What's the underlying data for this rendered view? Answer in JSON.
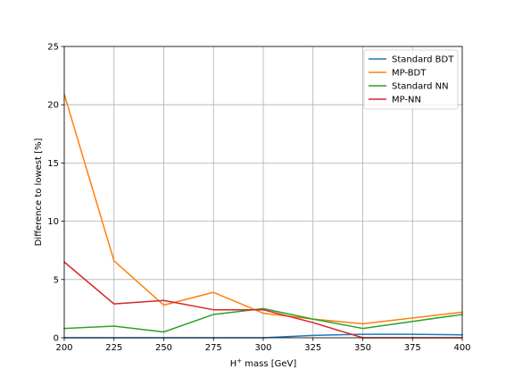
{
  "chart_data": {
    "type": "line",
    "x": [
      200,
      225,
      250,
      275,
      300,
      325,
      350,
      375,
      400
    ],
    "series": [
      {
        "name": "Standard BDT",
        "color": "#1f77b4",
        "values": [
          0.0,
          0.0,
          0.0,
          0.0,
          0.0,
          0.2,
          0.3,
          0.3,
          0.25
        ]
      },
      {
        "name": "MP-BDT",
        "color": "#ff7f0e",
        "values": [
          20.9,
          6.6,
          2.8,
          3.9,
          2.1,
          1.6,
          1.2,
          1.7,
          2.2
        ]
      },
      {
        "name": "Standard NN",
        "color": "#2ca02c",
        "values": [
          0.8,
          1.0,
          0.5,
          2.0,
          2.5,
          1.6,
          0.8,
          1.4,
          2.0
        ]
      },
      {
        "name": "MP-NN",
        "color": "#d62728",
        "values": [
          6.5,
          2.9,
          3.2,
          2.4,
          2.4,
          1.3,
          0.0,
          0.0,
          0.0
        ]
      }
    ],
    "xlabel_main": "H",
    "xlabel_sup": "+",
    "xlabel_rest": " mass [GeV]",
    "ylabel": "Difference to lowest [%]",
    "xlim": [
      200,
      400
    ],
    "ylim": [
      0,
      25
    ],
    "xticks": [
      200,
      225,
      250,
      275,
      300,
      325,
      350,
      375,
      400
    ],
    "yticks": [
      0,
      5,
      10,
      15,
      20,
      25
    ],
    "grid": true,
    "legend_position": "top-right"
  }
}
